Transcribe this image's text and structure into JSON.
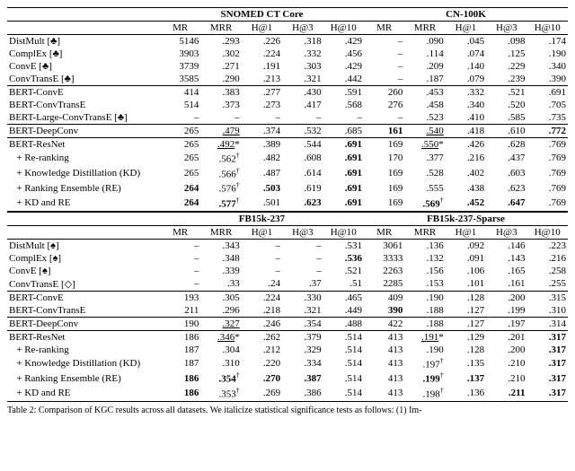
{
  "top": {
    "group1": "SNOMED CT Core",
    "group2": "CN-100K",
    "cols": [
      "MR",
      "MRR",
      "H@1",
      "H@3",
      "H@10",
      "MR",
      "MRR",
      "H@1",
      "H@3",
      "H@10"
    ],
    "blocks": [
      [
        {
          "name": "DistMult [♣]",
          "cells": [
            "5146",
            ".293",
            ".226",
            ".318",
            ".429",
            "–",
            ".090",
            ".045",
            ".098",
            ".174"
          ]
        },
        {
          "name": "ComplEx [♣]",
          "cells": [
            "3903",
            ".302",
            ".224",
            ".332",
            ".456",
            "–",
            ".114",
            ".074",
            ".125",
            ".190"
          ]
        },
        {
          "name": "ConvE [♣]",
          "cells": [
            "3739",
            ".271",
            ".191",
            ".303",
            ".429",
            "–",
            ".209",
            ".140",
            ".229",
            ".340"
          ]
        },
        {
          "name": "ConvTransE [♣]",
          "cells": [
            "3585",
            ".290",
            ".213",
            ".321",
            ".442",
            "–",
            ".187",
            ".079",
            ".239",
            ".390"
          ]
        }
      ],
      [
        {
          "name": "BERT-ConvE",
          "cells": [
            "414",
            ".383",
            ".277",
            ".430",
            ".591",
            "260",
            ".453",
            ".332",
            ".521",
            ".691"
          ]
        },
        {
          "name": "BERT-ConvTransE",
          "cells": [
            "514",
            ".373",
            ".273",
            ".417",
            ".568",
            "276",
            ".458",
            ".340",
            ".520",
            ".705"
          ]
        },
        {
          "name": "BERT-Large-ConvTransE [♣]",
          "cells": [
            "–",
            "–",
            "–",
            "–",
            "–",
            "–",
            ".523",
            ".410",
            ".585",
            ".735"
          ]
        }
      ],
      [
        {
          "name": "BERT-DeepConv",
          "cells": [
            "265",
            "<u>.479</u>",
            ".374",
            ".532",
            ".685",
            "<b>161</b>",
            "<u>.540</u>",
            ".418",
            ".610",
            "<b>.772</b>"
          ]
        }
      ],
      [
        {
          "name": "BERT-ResNet",
          "cells": [
            "265",
            "<u>.492</u>*",
            ".389",
            ".544",
            "<b>.691</b>",
            "169",
            "<u>.550</u>*",
            ".426",
            ".628",
            ".769"
          ]
        },
        {
          "name": "  + Re-ranking",
          "cells": [
            "265",
            ".562<sup>†</sup>",
            ".482",
            ".608",
            "<b>.691</b>",
            "170",
            ".377",
            ".216",
            ".437",
            ".769"
          ]
        },
        {
          "name": "  + Knowledge Distillation (KD)",
          "cells": [
            "265",
            ".566<sup>†</sup>",
            ".487",
            ".614",
            "<b>.691</b>",
            "169",
            ".528",
            ".402",
            ".603",
            ".769"
          ]
        },
        {
          "name": "  + Ranking Ensemble (RE)",
          "cells": [
            "<b>264</b>",
            ".576<sup>†</sup>",
            "<b>.503</b>",
            ".619",
            "<b>.691</b>",
            "169",
            ".555",
            ".438",
            ".623",
            ".769"
          ]
        },
        {
          "name": "  + KD and RE",
          "cells": [
            "<b>264</b>",
            "<b>.577</b><sup>†</sup>",
            ".501",
            "<b>.623</b>",
            "<b>.691</b>",
            "169",
            "<b>.569</b><sup>†</sup>",
            "<b>.452</b>",
            "<b>.647</b>",
            ".769"
          ]
        }
      ]
    ]
  },
  "bottom": {
    "group1": "FB15k-237",
    "group2": "FB15k-237-Sparse",
    "cols": [
      "MR",
      "MRR",
      "H@1",
      "H@3",
      "H@10",
      "MR",
      "MRR",
      "H@1",
      "H@3",
      "H@10"
    ],
    "blocks": [
      [
        {
          "name": "DistMult [♠]",
          "cells": [
            "–",
            ".343",
            "–",
            "–",
            ".531",
            "3061",
            ".136",
            ".092",
            ".146",
            ".223"
          ]
        },
        {
          "name": "ComplEx [♠]",
          "cells": [
            "–",
            ".348",
            "–",
            "–",
            "<b>.536</b>",
            "3333",
            ".132",
            ".091",
            ".143",
            ".216"
          ]
        },
        {
          "name": "ConvE [♠]",
          "cells": [
            "–",
            ".339",
            "–",
            "–",
            ".521",
            "2263",
            ".156",
            ".106",
            ".165",
            ".258"
          ]
        },
        {
          "name": "ConvTransE [◇]",
          "cells": [
            "–",
            ".33",
            ".24",
            ".37",
            ".51",
            "2285",
            ".153",
            ".101",
            ".161",
            ".255"
          ]
        }
      ],
      [
        {
          "name": "BERT-ConvE",
          "cells": [
            "193",
            ".305",
            ".224",
            ".330",
            ".465",
            "409",
            ".190",
            ".128",
            ".200",
            ".315"
          ]
        },
        {
          "name": "BERT-ConvTransE",
          "cells": [
            "211",
            ".296",
            ".218",
            ".321",
            ".449",
            "<b>390</b>",
            ".188",
            ".127",
            ".199",
            ".310"
          ]
        }
      ],
      [
        {
          "name": "BERT-DeepConv",
          "cells": [
            "190",
            "<u>.327</u>",
            ".246",
            ".354",
            ".488",
            "422",
            ".188",
            ".127",
            ".197",
            ".314"
          ]
        }
      ],
      [
        {
          "name": "BERT-ResNet",
          "cells": [
            "186",
            "<u>.346</u>*",
            ".262",
            ".379",
            ".514",
            "413",
            "<u>.191</u>*",
            ".129",
            ".201",
            "<b>.317</b>"
          ]
        },
        {
          "name": "  + Re-ranking",
          "cells": [
            "187",
            ".304",
            ".212",
            ".329",
            ".514",
            "413",
            ".190",
            ".128",
            ".200",
            "<b>.317</b>"
          ]
        },
        {
          "name": "  + Knowledge Distillation (KD)",
          "cells": [
            "187",
            ".310",
            ".220",
            ".334",
            ".514",
            "413",
            ".197<sup>†</sup>",
            ".135",
            ".210",
            "<b>.317</b>"
          ]
        },
        {
          "name": "  + Ranking Ensemble (RE)",
          "cells": [
            "<b>186</b>",
            "<b>.354</b><sup>†</sup>",
            "<b>.270</b>",
            "<b>.387</b>",
            ".514",
            "413",
            "<b>.199</b><sup>†</sup>",
            "<b>.137</b>",
            ".210",
            "<b>.317</b>"
          ]
        },
        {
          "name": "  + KD and RE",
          "cells": [
            "<b>186</b>",
            ".353<sup>†</sup>",
            ".269",
            ".386",
            ".514",
            "413",
            ".198<sup>†</sup>",
            ".136",
            "<b>.211</b>",
            "<b>.317</b>"
          ]
        }
      ]
    ]
  },
  "caption_prefix": "Table 2: Comparison of KGC results across all datasets. We italicize statistical significance tests as follows: (1) Im-"
}
